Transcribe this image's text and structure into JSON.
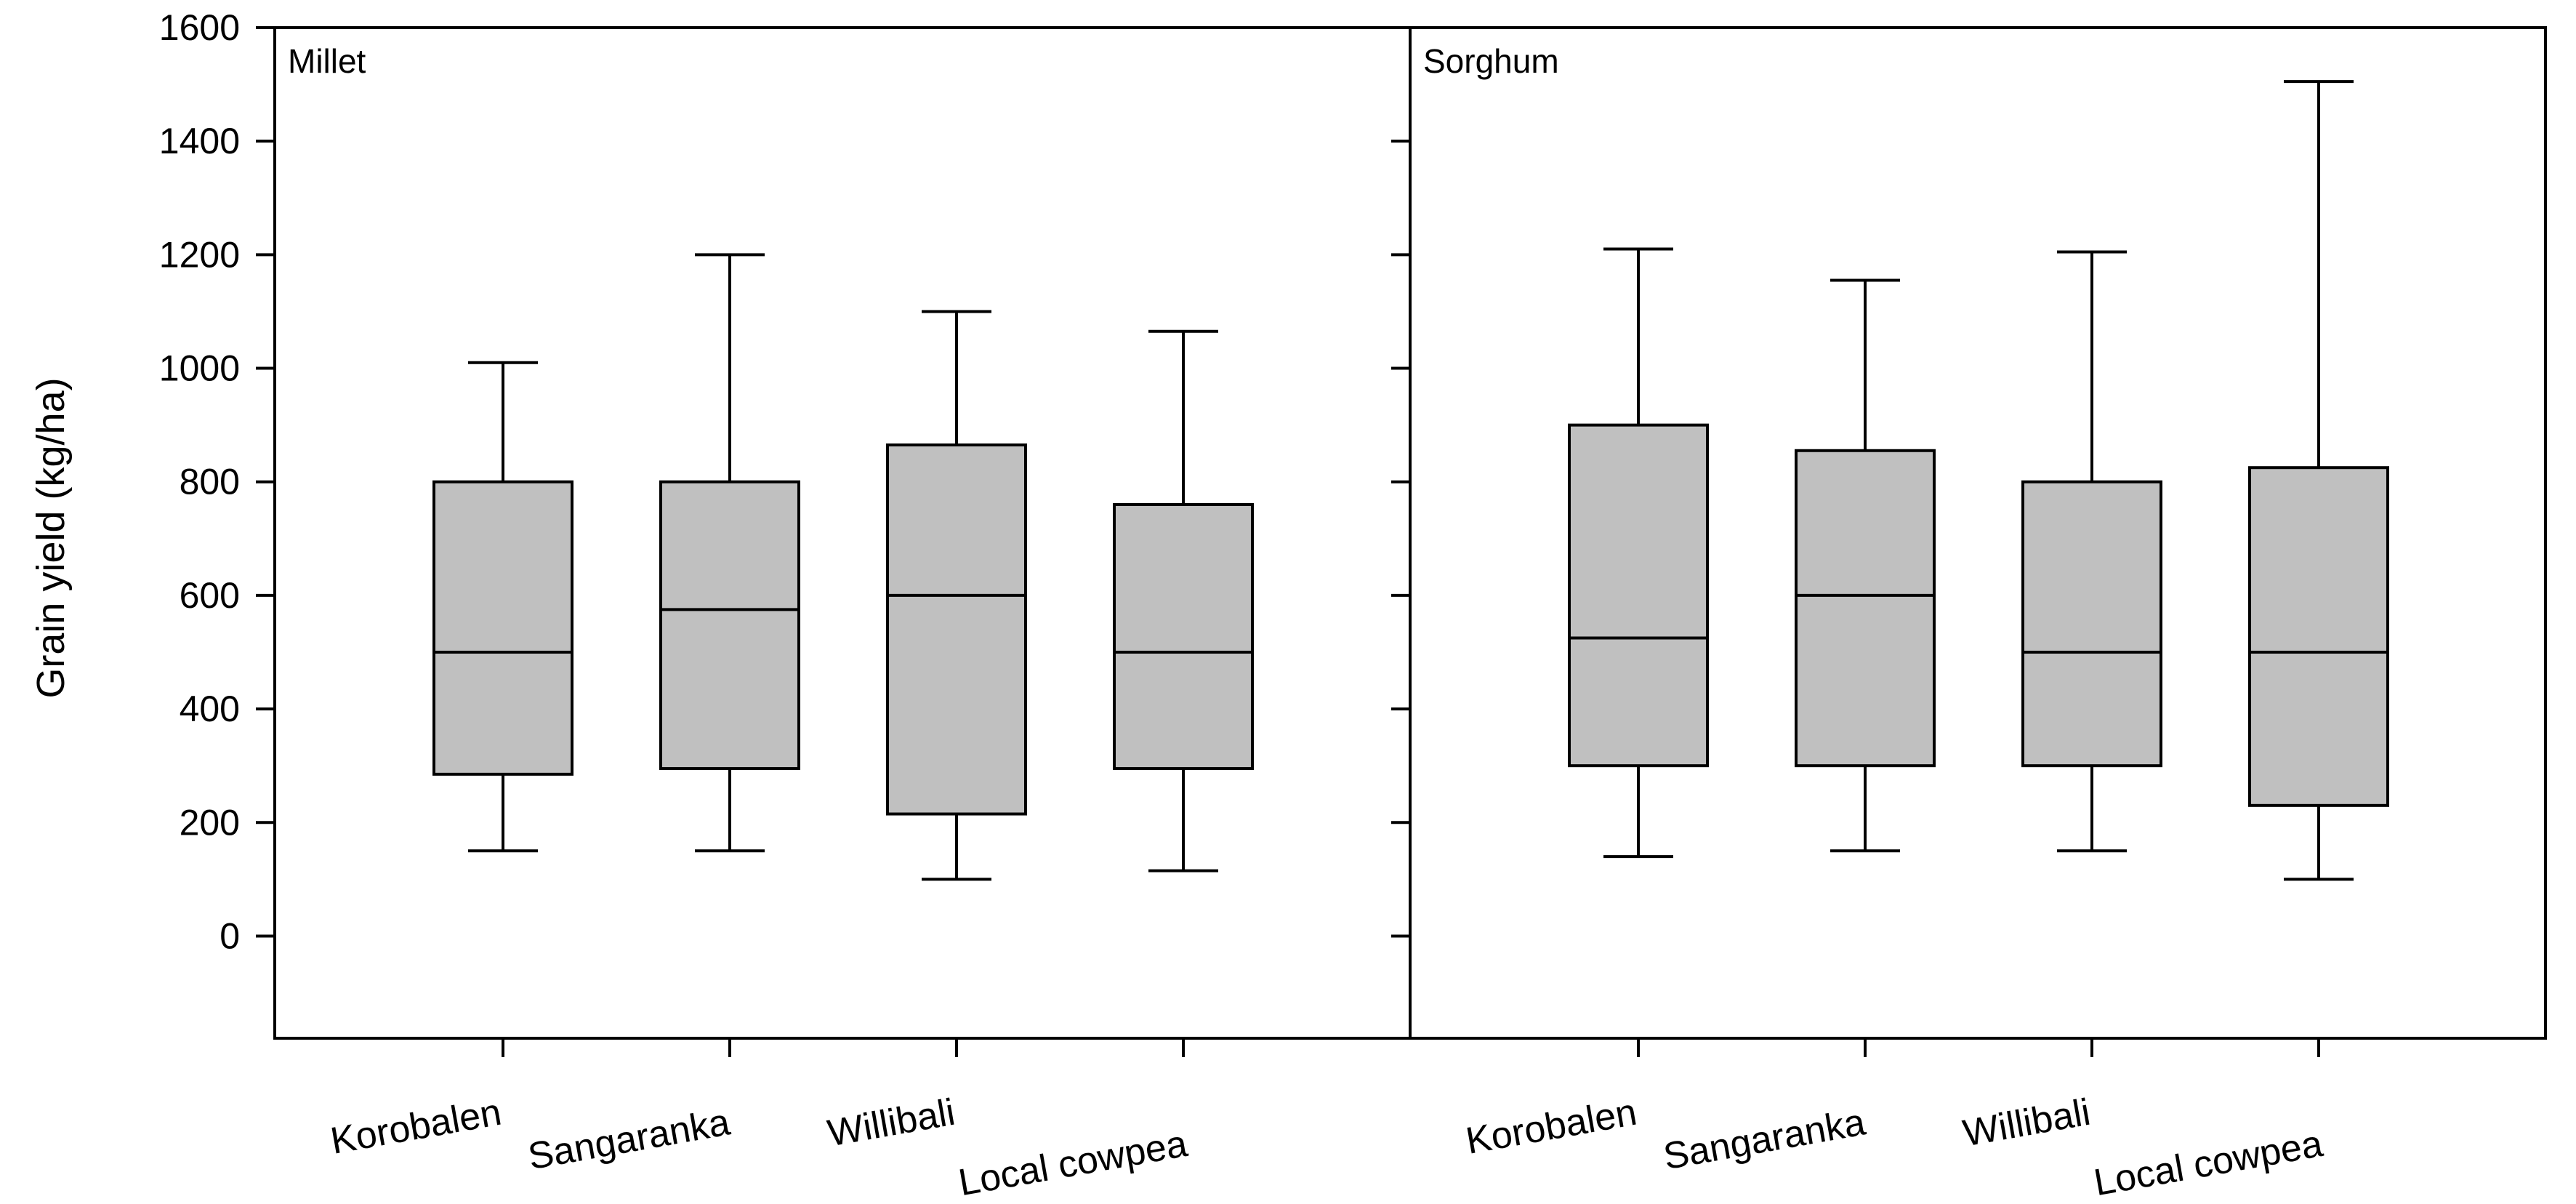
{
  "chart_data": {
    "type": "boxplot",
    "ylabel": "Grain yield (kg/ha)",
    "ylim": [
      -180,
      1600
    ],
    "yticks": [
      0,
      200,
      400,
      600,
      800,
      1000,
      1200,
      1400,
      1600
    ],
    "box_color": "#c0c0c0",
    "line_color": "#000000",
    "categories": [
      "Korobalen",
      "Sangaranka",
      "Willibali",
      "Local cowpea"
    ],
    "panels": [
      {
        "title": "Millet",
        "boxes": [
          {
            "category": "Korobalen",
            "min": 150,
            "q1": 285,
            "median": 500,
            "q3": 800,
            "max": 1010
          },
          {
            "category": "Sangaranka",
            "min": 150,
            "q1": 295,
            "median": 575,
            "q3": 800,
            "max": 1200
          },
          {
            "category": "Willibali",
            "min": 100,
            "q1": 215,
            "median": 600,
            "q3": 865,
            "max": 1100
          },
          {
            "category": "Local cowpea",
            "min": 115,
            "q1": 295,
            "median": 500,
            "q3": 760,
            "max": 1065
          }
        ]
      },
      {
        "title": "Sorghum",
        "boxes": [
          {
            "category": "Korobalen",
            "min": 140,
            "q1": 300,
            "median": 525,
            "q3": 900,
            "max": 1210
          },
          {
            "category": "Sangaranka",
            "min": 150,
            "q1": 300,
            "median": 600,
            "q3": 855,
            "max": 1155
          },
          {
            "category": "Willibali",
            "min": 150,
            "q1": 300,
            "median": 500,
            "q3": 800,
            "max": 1205
          },
          {
            "category": "Local cowpea",
            "min": 100,
            "q1": 230,
            "median": 500,
            "q3": 825,
            "max": 1505
          }
        ]
      }
    ]
  }
}
